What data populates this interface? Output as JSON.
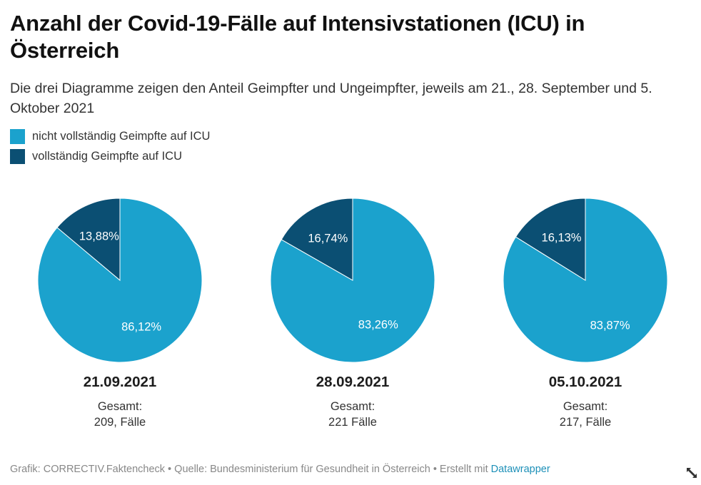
{
  "chart_data": {
    "type": "pie",
    "title": "Anzahl der Covid-19-Fälle auf Intensivstationen (ICU) in Österreich",
    "subtitle": "Die drei Diagramme zeigen den Anteil Geimpfter und Ungeimpfter, jeweils am 21., 28. September und 5. Oktober 2021",
    "legend": [
      {
        "label": "nicht vollständig Geimpfte auf ICU",
        "color": "#1ba2cd"
      },
      {
        "label": "vollständig Geimpfte auf ICU",
        "color": "#0b4f73"
      }
    ],
    "pies": [
      {
        "date": "21.09.2021",
        "total_label": "Gesamt:",
        "total": "209",
        "unit": "Fälle",
        "slices": [
          {
            "name": "vollständig Geimpfte auf ICU",
            "value": 13.88,
            "label": "13,88%"
          },
          {
            "name": "nicht vollständig Geimpfte auf ICU",
            "value": 86.12,
            "label": "86,12%"
          }
        ]
      },
      {
        "date": "28.09.2021",
        "total_label": "Gesamt:",
        "total": "221",
        "unit": "Fälle",
        "slices": [
          {
            "name": "vollständig Geimpfte auf ICU",
            "value": 16.74,
            "label": "16,74%"
          },
          {
            "name": "nicht vollständig Geimpfte auf ICU",
            "value": 83.26,
            "label": "83,26%"
          }
        ]
      },
      {
        "date": "05.10.2021",
        "total_label": "Gesamt:",
        "total": "217",
        "unit": "Fälle",
        "slices": [
          {
            "name": "vollständig Geimpfte auf ICU",
            "value": 16.13,
            "label": "16,13%"
          },
          {
            "name": "nicht vollständig Geimpfte auf ICU",
            "value": 83.87,
            "label": "83,87%"
          }
        ]
      }
    ]
  },
  "footer": {
    "text": "Grafik: CORRECTIV.Faktencheck • Quelle: Bundesministerium für Gesundheit in Österreich • Erstellt mit",
    "link": "Datawrapper"
  },
  "icons": {
    "expand": "expand-icon"
  },
  "colors": {
    "not_vaccinated": "#1ba2cd",
    "vaccinated": "#0b4f73"
  }
}
